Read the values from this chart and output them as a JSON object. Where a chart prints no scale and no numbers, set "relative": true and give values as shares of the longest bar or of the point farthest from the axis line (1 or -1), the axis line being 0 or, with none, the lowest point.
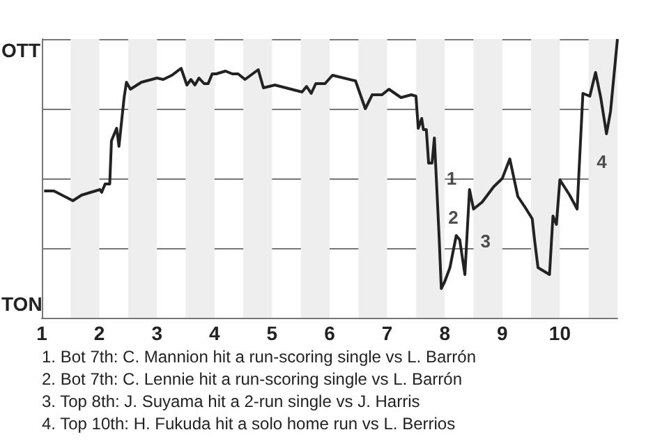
{
  "chart_data": {
    "type": "line",
    "x": [
      1.04,
      1.21,
      1.54,
      1.69,
      2.01,
      2.04,
      2.1,
      2.18,
      2.21,
      2.3,
      2.34,
      2.43,
      2.47,
      2.54,
      2.73,
      3.0,
      3.11,
      3.26,
      3.42,
      3.52,
      3.59,
      3.66,
      3.73,
      3.82,
      3.89,
      3.96,
      4.03,
      4.19,
      4.31,
      4.41,
      4.53,
      4.76,
      4.85,
      5.05,
      5.52,
      5.6,
      5.68,
      5.76,
      5.92,
      6.05,
      6.45,
      6.62,
      6.74,
      6.91,
      7.03,
      7.24,
      7.42,
      7.5,
      7.54,
      7.6,
      7.63,
      7.68,
      7.72,
      7.78,
      7.82,
      7.9,
      7.94,
      8.0,
      8.09,
      8.2,
      8.26,
      8.35,
      8.43,
      8.5,
      8.65,
      8.85,
      9.0,
      9.13,
      9.27,
      9.4,
      9.52,
      9.56,
      9.62,
      9.7,
      9.82,
      9.88,
      9.94,
      10.0,
      10.17,
      10.3,
      10.4,
      10.52,
      10.62,
      10.71,
      10.81,
      10.88,
      11.0
    ],
    "values": [
      0.455,
      0.455,
      0.42,
      0.44,
      0.46,
      0.45,
      0.48,
      0.48,
      0.635,
      0.68,
      0.615,
      0.79,
      0.845,
      0.82,
      0.845,
      0.86,
      0.855,
      0.87,
      0.895,
      0.835,
      0.855,
      0.835,
      0.86,
      0.84,
      0.84,
      0.875,
      0.875,
      0.885,
      0.875,
      0.875,
      0.855,
      0.89,
      0.825,
      0.835,
      0.81,
      0.83,
      0.805,
      0.84,
      0.84,
      0.87,
      0.85,
      0.75,
      0.8,
      0.8,
      0.82,
      0.79,
      0.8,
      0.795,
      0.68,
      0.715,
      0.675,
      0.675,
      0.555,
      0.555,
      0.645,
      0.3,
      0.105,
      0.13,
      0.18,
      0.295,
      0.28,
      0.155,
      0.46,
      0.39,
      0.415,
      0.47,
      0.5,
      0.57,
      0.435,
      0.395,
      0.355,
      0.28,
      0.18,
      0.17,
      0.155,
      0.365,
      0.335,
      0.495,
      0.44,
      0.39,
      0.805,
      0.795,
      0.88,
      0.79,
      0.66,
      0.74,
      1.0
    ],
    "color": "#222222",
    "relative": true,
    "xlim": [
      1,
      11
    ],
    "xticks": [
      1,
      2,
      3,
      4,
      5,
      6,
      7,
      8,
      9,
      10
    ],
    "grid": "y",
    "marker": "none",
    "bands": [
      {
        "axis": "x",
        "from": 1.5,
        "to": 2,
        "color": "#eeeeee"
      },
      {
        "axis": "x",
        "from": 2.5,
        "to": 3,
        "color": "#eeeeee"
      },
      {
        "axis": "x",
        "from": 3.5,
        "to": 4,
        "color": "#eeeeee"
      },
      {
        "axis": "x",
        "from": 4.5,
        "to": 5,
        "color": "#eeeeee"
      },
      {
        "axis": "x",
        "from": 5.5,
        "to": 6,
        "color": "#eeeeee"
      },
      {
        "axis": "x",
        "from": 6.5,
        "to": 7,
        "color": "#eeeeee"
      },
      {
        "axis": "x",
        "from": 7.5,
        "to": 8,
        "color": "#eeeeee"
      },
      {
        "axis": "x",
        "from": 8.5,
        "to": 9,
        "color": "#eeeeee"
      },
      {
        "axis": "x",
        "from": 9.5,
        "to": 10,
        "color": "#eeeeee"
      },
      {
        "axis": "x",
        "from": 10.5,
        "to": 11,
        "color": "#eeeeee"
      }
    ],
    "annotations": [
      "OTT",
      "TON",
      {
        "text": "1",
        "x": 7.91,
        "y": 0.5
      },
      {
        "text": "2",
        "x": 7.94,
        "y": 0.36
      },
      {
        "text": "3",
        "x": 8.5,
        "y": 0.275
      },
      {
        "text": "4",
        "x": 10.52,
        "y": 0.56
      },
      "1. Bot 7th: C. Mannion hit a run-scoring single vs L. Barrón",
      "2. Bot 7th: C. Lennie hit a run-scoring single vs L. Barrón",
      "3. Top 8th: J. Suyama hit a 2-run single vs J. Harris",
      "4. Top 10th: H. Fukuda hit a solo home run vs L. Berrios"
    ]
  }
}
